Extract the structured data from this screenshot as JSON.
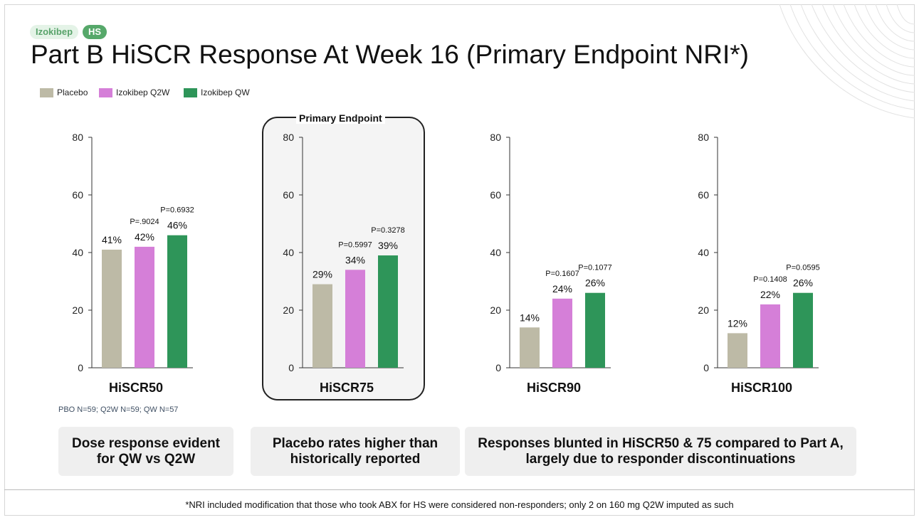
{
  "tags": {
    "product": "Izokibep",
    "indication": "HS"
  },
  "title": "Part B HiSCR Response At Week 16 (Primary Endpoint NRI*)",
  "legend": [
    {
      "label": "Placebo",
      "color": "#bdbaa6"
    },
    {
      "label": "Izokibep Q2W",
      "color": "#d57fd8"
    },
    {
      "label": "Izokibep QW",
      "color": "#2e9559"
    }
  ],
  "primary_endpoint_label": "Primary Endpoint",
  "chart_data": [
    {
      "type": "bar",
      "xlabel": "HiSCR50",
      "ylim": [
        0,
        80
      ],
      "yticks": [
        0,
        20,
        40,
        60,
        80
      ],
      "categories": [
        "Placebo",
        "Izokibep Q2W",
        "Izokibep QW"
      ],
      "values": [
        41,
        42,
        46
      ],
      "value_labels": [
        "41%",
        "42%",
        "46%"
      ],
      "p_values": [
        "",
        "P=.9024",
        "P=0.6932"
      ]
    },
    {
      "type": "bar",
      "xlabel": "HiSCR75",
      "ylim": [
        0,
        80
      ],
      "yticks": [
        0,
        20,
        40,
        60,
        80
      ],
      "categories": [
        "Placebo",
        "Izokibep Q2W",
        "Izokibep QW"
      ],
      "values": [
        29,
        34,
        39
      ],
      "value_labels": [
        "29%",
        "34%",
        "39%"
      ],
      "p_values": [
        "",
        "P=0.5997",
        "P=0.3278"
      ]
    },
    {
      "type": "bar",
      "xlabel": "HiSCR90",
      "ylim": [
        0,
        80
      ],
      "yticks": [
        0,
        20,
        40,
        60,
        80
      ],
      "categories": [
        "Placebo",
        "Izokibep Q2W",
        "Izokibep QW"
      ],
      "values": [
        14,
        24,
        26
      ],
      "value_labels": [
        "14%",
        "24%",
        "26%"
      ],
      "p_values": [
        "",
        "P=0.1607",
        "P=0.1077"
      ]
    },
    {
      "type": "bar",
      "xlabel": "HiSCR100",
      "ylim": [
        0,
        80
      ],
      "yticks": [
        0,
        20,
        40,
        60,
        80
      ],
      "categories": [
        "Placebo",
        "Izokibep Q2W",
        "Izokibep QW"
      ],
      "values": [
        12,
        22,
        26
      ],
      "value_labels": [
        "12%",
        "22%",
        "26%"
      ],
      "p_values": [
        "",
        "P=0.1408",
        "P=0.0595"
      ]
    }
  ],
  "sample_sizes": "PBO N=59; Q2W N=59; QW N=57",
  "callouts": [
    "Dose response evident\nfor QW vs Q2W",
    "Placebo rates higher than\nhistorically reported",
    "Responses blunted in HiSCR50 & 75 compared to Part A,\nlargely due to responder discontinuations"
  ],
  "footnote": "*NRI included modification that those who took ABX for HS were considered non-responders; only 2 on 160 mg Q2W imputed as such"
}
